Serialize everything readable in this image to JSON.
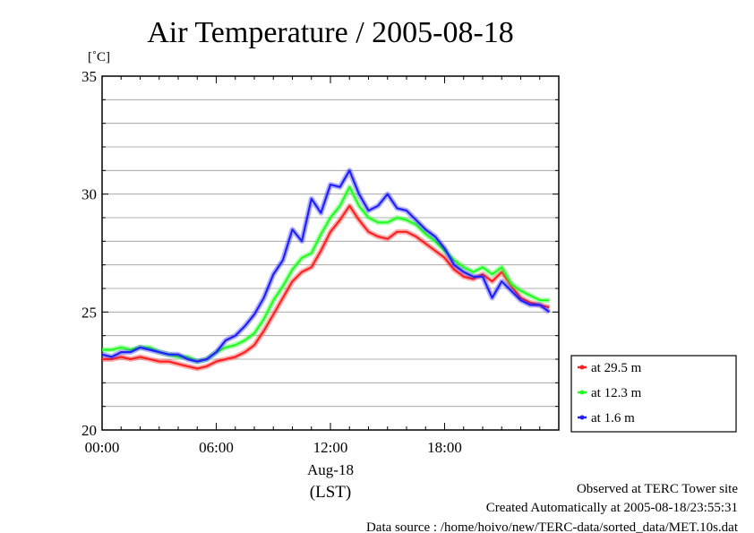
{
  "chart_data": {
    "type": "line",
    "title": "Air Temperature / 2005-08-18",
    "ylabel": "[˚C]",
    "xlabel_date": "Aug-18",
    "xlabel_unit": "(LST)",
    "ylim": [
      20,
      35
    ],
    "xlim": [
      0,
      24
    ],
    "y_ticks": [
      {
        "value": 20,
        "label": "20"
      },
      {
        "value": 25,
        "label": "25"
      },
      {
        "value": 30,
        "label": "30"
      },
      {
        "value": 35,
        "label": "35"
      }
    ],
    "x_ticks": [
      {
        "value": 0,
        "label": "00:00"
      },
      {
        "value": 6,
        "label": "06:00"
      },
      {
        "value": 12,
        "label": "12:00"
      },
      {
        "value": 18,
        "label": "18:00"
      }
    ],
    "grid": true,
    "legend_position": "bottom-right outside",
    "series": [
      {
        "name": "at 29.5 m",
        "color": "#ff2020",
        "x": [
          0,
          0.5,
          1,
          1.5,
          2,
          2.5,
          3,
          3.5,
          4,
          4.5,
          5,
          5.5,
          6,
          6.5,
          7,
          7.5,
          8,
          8.5,
          9,
          9.5,
          10,
          10.5,
          11,
          11.5,
          12,
          12.5,
          13,
          13.5,
          14,
          14.5,
          15,
          15.5,
          16,
          16.5,
          17,
          17.5,
          18,
          18.5,
          19,
          19.5,
          20,
          20.5,
          21,
          21.5,
          22,
          22.5,
          23,
          23.5
        ],
        "y": [
          23.0,
          23.0,
          23.1,
          23.0,
          23.1,
          23.0,
          22.9,
          22.9,
          22.8,
          22.7,
          22.6,
          22.7,
          22.9,
          23.0,
          23.1,
          23.3,
          23.6,
          24.2,
          24.9,
          25.6,
          26.3,
          26.7,
          26.9,
          27.6,
          28.4,
          28.9,
          29.5,
          28.9,
          28.4,
          28.2,
          28.1,
          28.4,
          28.4,
          28.2,
          27.9,
          27.6,
          27.3,
          26.8,
          26.5,
          26.4,
          26.6,
          26.3,
          26.7,
          26.1,
          25.6,
          25.4,
          25.3,
          25.2
        ]
      },
      {
        "name": "at 12.3 m",
        "color": "#20ff20",
        "x": [
          0,
          0.5,
          1,
          1.5,
          2,
          2.5,
          3,
          3.5,
          4,
          4.5,
          5,
          5.5,
          6,
          6.5,
          7,
          7.5,
          8,
          8.5,
          9,
          9.5,
          10,
          10.5,
          11,
          11.5,
          12,
          12.5,
          13,
          13.5,
          14,
          14.5,
          15,
          15.5,
          16,
          16.5,
          17,
          17.5,
          18,
          18.5,
          19,
          19.5,
          20,
          20.5,
          21,
          21.5,
          22,
          22.5,
          23,
          23.5
        ],
        "y": [
          23.4,
          23.4,
          23.5,
          23.4,
          23.5,
          23.5,
          23.3,
          23.2,
          23.1,
          23.1,
          22.9,
          23.0,
          23.3,
          23.5,
          23.6,
          23.8,
          24.1,
          24.7,
          25.5,
          26.1,
          26.8,
          27.3,
          27.5,
          28.3,
          29.0,
          29.5,
          30.3,
          29.5,
          29.0,
          28.8,
          28.8,
          29.0,
          28.9,
          28.7,
          28.3,
          28.0,
          27.6,
          27.2,
          26.9,
          26.7,
          26.9,
          26.6,
          26.9,
          26.2,
          25.9,
          25.7,
          25.5,
          25.5
        ]
      },
      {
        "name": "at 1.6 m",
        "color": "#2020ff",
        "x": [
          0,
          0.5,
          1,
          1.5,
          2,
          2.5,
          3,
          3.5,
          4,
          4.5,
          5,
          5.5,
          6,
          6.5,
          7,
          7.5,
          8,
          8.5,
          9,
          9.5,
          10,
          10.5,
          11,
          11.5,
          12,
          12.5,
          13,
          13.5,
          14,
          14.5,
          15,
          15.5,
          16,
          16.5,
          17,
          17.5,
          18,
          18.5,
          19,
          19.5,
          20,
          20.5,
          21,
          21.5,
          22,
          22.5,
          23,
          23.5
        ],
        "y": [
          23.2,
          23.1,
          23.3,
          23.3,
          23.5,
          23.4,
          23.3,
          23.2,
          23.2,
          23.0,
          22.9,
          23.0,
          23.3,
          23.8,
          24.0,
          24.4,
          24.9,
          25.6,
          26.6,
          27.2,
          28.5,
          28.0,
          29.8,
          29.2,
          30.4,
          30.3,
          31.0,
          30.0,
          29.3,
          29.5,
          30.0,
          29.4,
          29.3,
          28.9,
          28.5,
          28.2,
          27.7,
          27.0,
          26.7,
          26.5,
          26.5,
          25.6,
          26.3,
          25.9,
          25.5,
          25.3,
          25.3,
          25.0
        ]
      }
    ]
  },
  "footer": {
    "line1": "Observed at TERC Tower site",
    "line2": "Created Automatically at 2005-08-18/23:55:31",
    "line3": "Data source : /home/hoivo/new/TERC-data/sorted_data/MET.10s.dat"
  }
}
